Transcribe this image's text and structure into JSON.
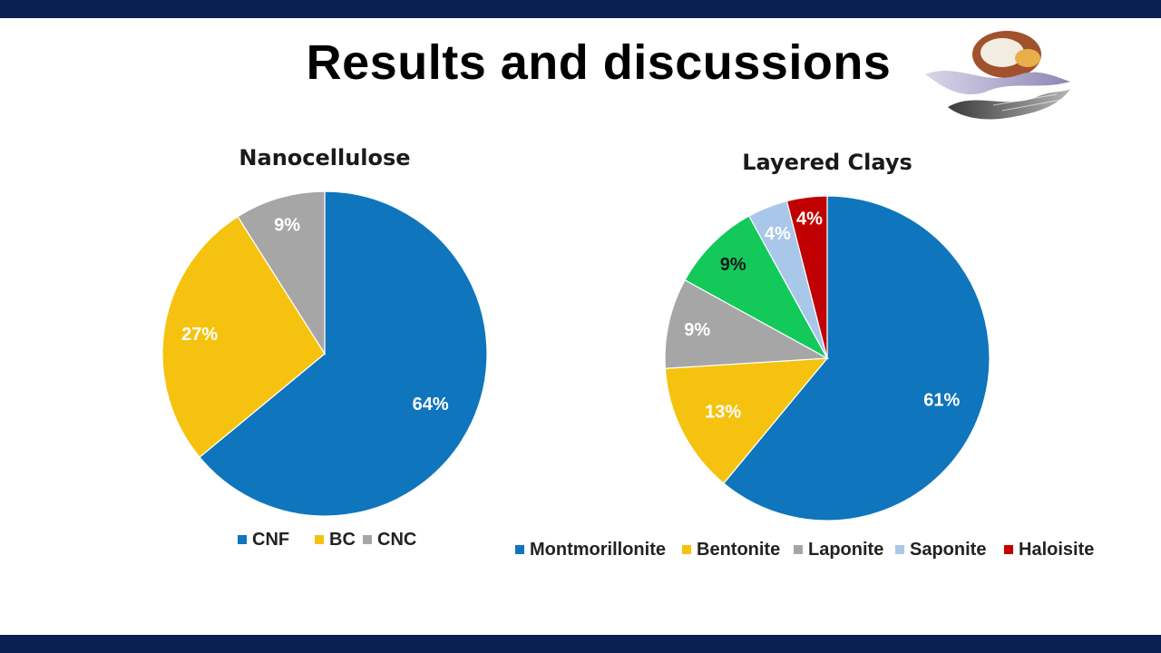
{
  "slide": {
    "title": "Results and discussions",
    "colors": {
      "band": "#0b1f55"
    }
  },
  "chart_data": [
    {
      "type": "pie",
      "title": "Nanocellulose",
      "categories": [
        "CNF",
        "BC",
        "CNC"
      ],
      "values": [
        64,
        27,
        9
      ],
      "labels": [
        "64%",
        "27%",
        "9%"
      ],
      "colors": [
        "#0f75bc",
        "#f5c30f",
        "#a6a6a6"
      ],
      "label_colors": [
        "#ffffff",
        "#ffffff",
        "#ffffff"
      ],
      "legend": "bottom"
    },
    {
      "type": "pie",
      "title": "Layered Clays",
      "categories": [
        "Montmorillonite",
        "Bentonite",
        "Laponite",
        "",
        "Saponite",
        "Haloisite"
      ],
      "legend_items": [
        "Montmorillonite",
        "Bentonite",
        "Laponite",
        "Saponite",
        "Haloisite"
      ],
      "legend_colors": [
        "#0f75bc",
        "#f5c30f",
        "#a6a6a6",
        "#a9c7e8",
        "#c00000"
      ],
      "values": [
        61,
        13,
        9,
        9,
        4,
        4
      ],
      "labels": [
        "61%",
        "13%",
        "9%",
        "9%",
        "4%",
        "4%"
      ],
      "colors": [
        "#0f75bc",
        "#f5c30f",
        "#a6a6a6",
        "#13c95a",
        "#a9c7e8",
        "#c00000"
      ],
      "label_colors": [
        "#ffffff",
        "#ffffff",
        "#ffffff",
        "#1a1a1a",
        "#ffffff",
        "#ffffff"
      ],
      "legend": "bottom"
    }
  ]
}
